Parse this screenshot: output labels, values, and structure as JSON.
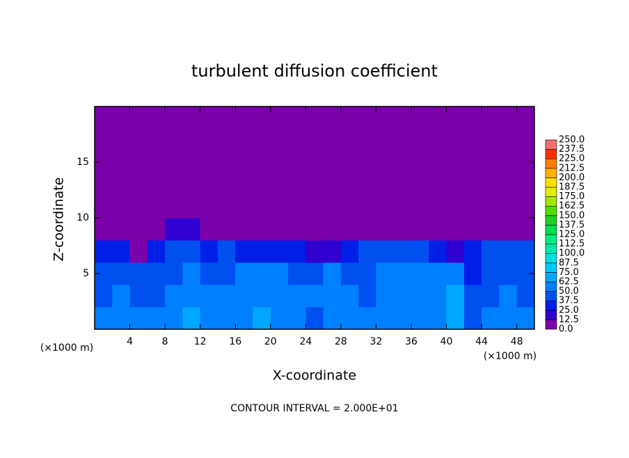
{
  "chart_data": {
    "type": "heatmap",
    "title": "turbulent diffusion coefficient",
    "x_label": "X-coordinate",
    "y_label": "Z-coordinate",
    "x_unit_left": "(×1000 m)",
    "x_unit_right": "(×1000 m)",
    "annotation": "CONTOUR INTERVAL = 2.000E+01",
    "xlim": [
      0,
      50
    ],
    "ylim": [
      0,
      20
    ],
    "xticks": [
      4,
      8,
      12,
      16,
      20,
      24,
      28,
      32,
      36,
      40,
      44,
      48
    ],
    "yticks": [
      5,
      10,
      15
    ],
    "x": [
      1,
      3,
      5,
      7,
      9,
      11,
      13,
      15,
      17,
      19,
      21,
      23,
      25,
      27,
      29,
      31,
      33,
      35,
      37,
      39,
      41,
      43,
      45,
      47,
      49
    ],
    "y": [
      1,
      3,
      5,
      7,
      9,
      11,
      13,
      15,
      17,
      19
    ],
    "values": [
      [
        50,
        55,
        50,
        55,
        60,
        65,
        55,
        55,
        60,
        65,
        60,
        55,
        45,
        55,
        55,
        50,
        55,
        60,
        60,
        60,
        70,
        45,
        50,
        55,
        50
      ],
      [
        45,
        50,
        45,
        40,
        50,
        60,
        55,
        50,
        55,
        60,
        55,
        50,
        50,
        55,
        50,
        45,
        50,
        50,
        55,
        55,
        65,
        40,
        45,
        50,
        45
      ],
      [
        40,
        45,
        40,
        40,
        45,
        50,
        45,
        40,
        50,
        55,
        50,
        45,
        45,
        50,
        40,
        45,
        50,
        50,
        55,
        50,
        60,
        35,
        40,
        45,
        40
      ],
      [
        35,
        30,
        10,
        30,
        40,
        40,
        30,
        40,
        35,
        30,
        35,
        30,
        20,
        20,
        30,
        40,
        45,
        40,
        40,
        35,
        15,
        25,
        40,
        40,
        40
      ],
      [
        0,
        0,
        0,
        0,
        15,
        15,
        0,
        0,
        0,
        0,
        0,
        0,
        0,
        0,
        0,
        0,
        0,
        0,
        0,
        0,
        0,
        0,
        0,
        0,
        0
      ],
      [
        0,
        0,
        0,
        0,
        0,
        0,
        0,
        0,
        0,
        0,
        0,
        0,
        0,
        0,
        0,
        0,
        0,
        0,
        0,
        0,
        0,
        0,
        0,
        0,
        0
      ],
      [
        0,
        0,
        0,
        0,
        0,
        0,
        0,
        0,
        0,
        0,
        0,
        0,
        0,
        0,
        0,
        0,
        0,
        0,
        0,
        0,
        0,
        0,
        0,
        0,
        0
      ],
      [
        0,
        0,
        0,
        0,
        0,
        0,
        0,
        0,
        0,
        0,
        0,
        0,
        0,
        0,
        0,
        0,
        0,
        0,
        0,
        0,
        0,
        0,
        0,
        0,
        0
      ],
      [
        0,
        0,
        0,
        0,
        0,
        0,
        0,
        0,
        0,
        0,
        0,
        0,
        0,
        0,
        0,
        0,
        0,
        0,
        0,
        0,
        0,
        0,
        0,
        0,
        0
      ],
      [
        0,
        0,
        0,
        0,
        0,
        0,
        0,
        0,
        0,
        0,
        0,
        0,
        0,
        0,
        0,
        0,
        0,
        0,
        0,
        0,
        0,
        0,
        0,
        0,
        0
      ]
    ],
    "colorbar_ticks": [
      {
        "value": 0,
        "label": "0.0"
      },
      12.5,
      {
        "value": 25,
        "label": "25.0"
      },
      37.5,
      {
        "value": 50,
        "label": "50.0"
      },
      62.5,
      {
        "value": 75,
        "label": "75.0"
      },
      87.5,
      {
        "value": 100,
        "label": "100.0"
      },
      112.5,
      {
        "value": 125,
        "label": "125.0"
      },
      137.5,
      {
        "value": 150,
        "label": "150.0"
      },
      162.5,
      {
        "value": 175,
        "label": "175.0"
      },
      187.5,
      {
        "value": 200,
        "label": "200.0"
      },
      212.5,
      {
        "value": 225,
        "label": "225.0"
      },
      237.5,
      {
        "value": 250,
        "label": "250.0"
      }
    ],
    "colors": [
      "#7a00aa",
      "#3000d0",
      "#0020e8",
      "#0050f0",
      "#0080ff",
      "#00a8ff",
      "#00c8ff",
      "#00e0e0",
      "#00e8b0",
      "#00f080",
      "#00e050",
      "#20d020",
      "#50e000",
      "#a0e800",
      "#e0f000",
      "#ffe000",
      "#ffb000",
      "#ff8000",
      "#ff3000",
      "#f07070"
    ]
  }
}
